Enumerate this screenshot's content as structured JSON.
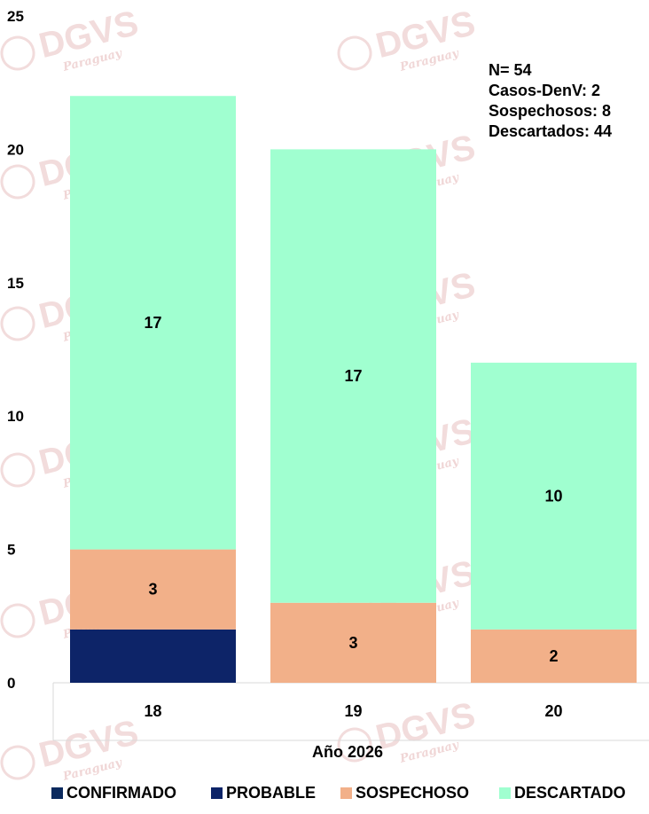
{
  "colors": {
    "CONFIRMADO": "#0b2a5e",
    "PROBABLE": "#0d2468",
    "SOSPECHOSO": "#f2b089",
    "DESCARTADO": "#a0ffd0",
    "watermark": "#f2dcdc"
  },
  "watermark": {
    "text": "DGVS",
    "subtext": "Paraguay"
  },
  "chart_data": {
    "type": "bar",
    "stacked": true,
    "categories": [
      "18",
      "19",
      "20"
    ],
    "series": [
      {
        "name": "CONFIRMADO",
        "values": [
          0,
          0,
          0
        ]
      },
      {
        "name": "PROBABLE",
        "values": [
          2,
          0,
          0
        ]
      },
      {
        "name": "SOSPECHOSO",
        "values": [
          3,
          3,
          2
        ]
      },
      {
        "name": "DESCARTADO",
        "values": [
          17,
          17,
          10
        ]
      }
    ],
    "segment_labels": [
      {
        "category": "18",
        "series": "SOSPECHOSO",
        "text": "3"
      },
      {
        "category": "18",
        "series": "DESCARTADO",
        "text": "17"
      },
      {
        "category": "19",
        "series": "SOSPECHOSO",
        "text": "3"
      },
      {
        "category": "19",
        "series": "DESCARTADO",
        "text": "17"
      },
      {
        "category": "20",
        "series": "SOSPECHOSO",
        "text": "2"
      },
      {
        "category": "20",
        "series": "DESCARTADO",
        "text": "10"
      }
    ],
    "xlabel": "Año 2026",
    "ylabel": "",
    "ylim": [
      0,
      25
    ],
    "yticks": [
      0,
      5,
      10,
      15,
      20,
      25
    ],
    "grid": false,
    "legend": {
      "position": "bottom",
      "entries": [
        "CONFIRMADO",
        "PROBABLE",
        "SOSPECHOSO",
        "DESCARTADO"
      ]
    },
    "annotations": [
      "N= 54",
      "Casos-DenV: 2",
      "Sospechosos: 8",
      "Descartados: 44"
    ]
  }
}
